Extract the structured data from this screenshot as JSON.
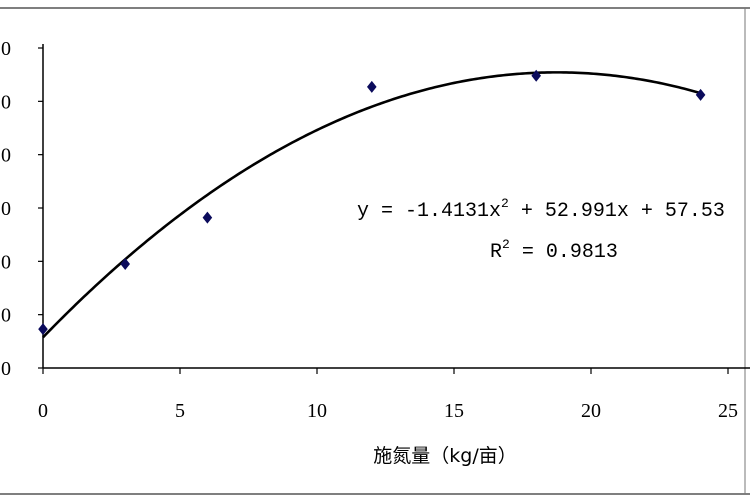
{
  "chart_data": {
    "type": "scatter",
    "title": "",
    "xlabel": "施氮量（kg/亩）",
    "ylabel": "",
    "xlim": [
      0,
      25
    ],
    "x_ticks": [
      "0",
      "5",
      "10",
      "15",
      "20",
      "25"
    ],
    "ylim": [
      0,
      600
    ],
    "y_ticks_visible": [
      "0",
      "0",
      "0",
      "0",
      "0",
      "0",
      "0"
    ],
    "grid": false,
    "legend": "none",
    "marker_color": "#0b0b5c",
    "points": [
      {
        "x": 0,
        "y": 73
      },
      {
        "x": 3,
        "y": 195
      },
      {
        "x": 6,
        "y": 282
      },
      {
        "x": 12,
        "y": 527
      },
      {
        "x": 18,
        "y": 548
      },
      {
        "x": 24,
        "y": 512
      }
    ],
    "trendline": {
      "type": "polynomial",
      "a": -1.4131,
      "b": 52.991,
      "c": 57.53
    },
    "annotations": {
      "equation_prefix": "y = -1.4131x",
      "equation_sup": "2",
      "equation_suffix": " + 52.991x + 57.53",
      "r2_prefix": "R",
      "r2_sup": "2",
      "r2_suffix": " = 0.9813"
    }
  }
}
